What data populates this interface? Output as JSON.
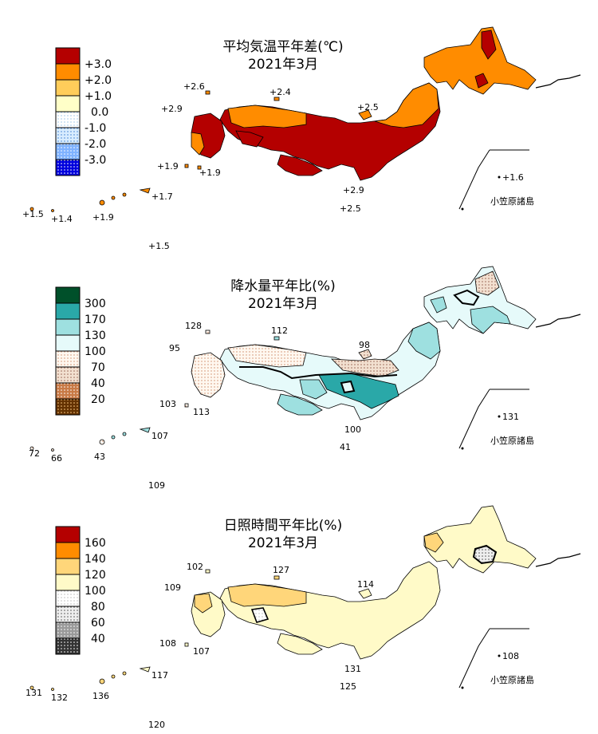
{
  "colors": {
    "temp": [
      "#b40000",
      "#ff8c00",
      "#ffcd5a",
      "#ffffc8",
      "#d8ecff",
      "#7fb2ff",
      "#0000dd"
    ],
    "precip": [
      "#00502a",
      "#2aa8a8",
      "#9ee0e0",
      "#e6fafa",
      "#f2e6da",
      "#c87a46",
      "#643200"
    ],
    "sun": [
      "#b40000",
      "#ff8c00",
      "#ffd67a",
      "#fffac8",
      "#eeeeee",
      "#9a9a9a",
      "#333333"
    ]
  },
  "panels": [
    {
      "id": "temperature",
      "title": "平均気温平年差(℃)",
      "subtitle": "2021年3月",
      "legend": [
        "+3.0",
        "+2.0",
        "+1.0",
        "0.0",
        "-1.0",
        "-2.0",
        "-3.0"
      ],
      "station_labels": [
        "+2.6",
        "+2.4",
        "+2.9",
        "+2.5",
        "+1.9",
        "+1.9",
        "+1.7",
        "+1.5",
        "+1.4",
        "+1.9",
        "+2.9",
        "+2.5",
        "+1.6",
        "+1.5"
      ],
      "ogasawara": "小笠原諸島"
    },
    {
      "id": "precipitation",
      "title": "降水量平年比(%)",
      "subtitle": "2021年3月",
      "legend": [
        "300",
        "170",
        "130",
        "100",
        "70",
        "40",
        "20"
      ],
      "station_labels": [
        "128",
        "112",
        "95",
        "98",
        "103",
        "113",
        "107",
        "72",
        "66",
        "43",
        "100",
        "41",
        "131",
        "109"
      ],
      "ogasawara": "小笠原諸島"
    },
    {
      "id": "sunshine",
      "title": "日照時間平年比(%)",
      "subtitle": "2021年3月",
      "legend": [
        "160",
        "140",
        "120",
        "100",
        "80",
        "60",
        "40"
      ],
      "station_labels": [
        "102",
        "127",
        "109",
        "114",
        "108",
        "107",
        "117",
        "131",
        "132",
        "136",
        "131",
        "125",
        "108",
        "120"
      ],
      "ogasawara": "小笠原諸島"
    }
  ]
}
